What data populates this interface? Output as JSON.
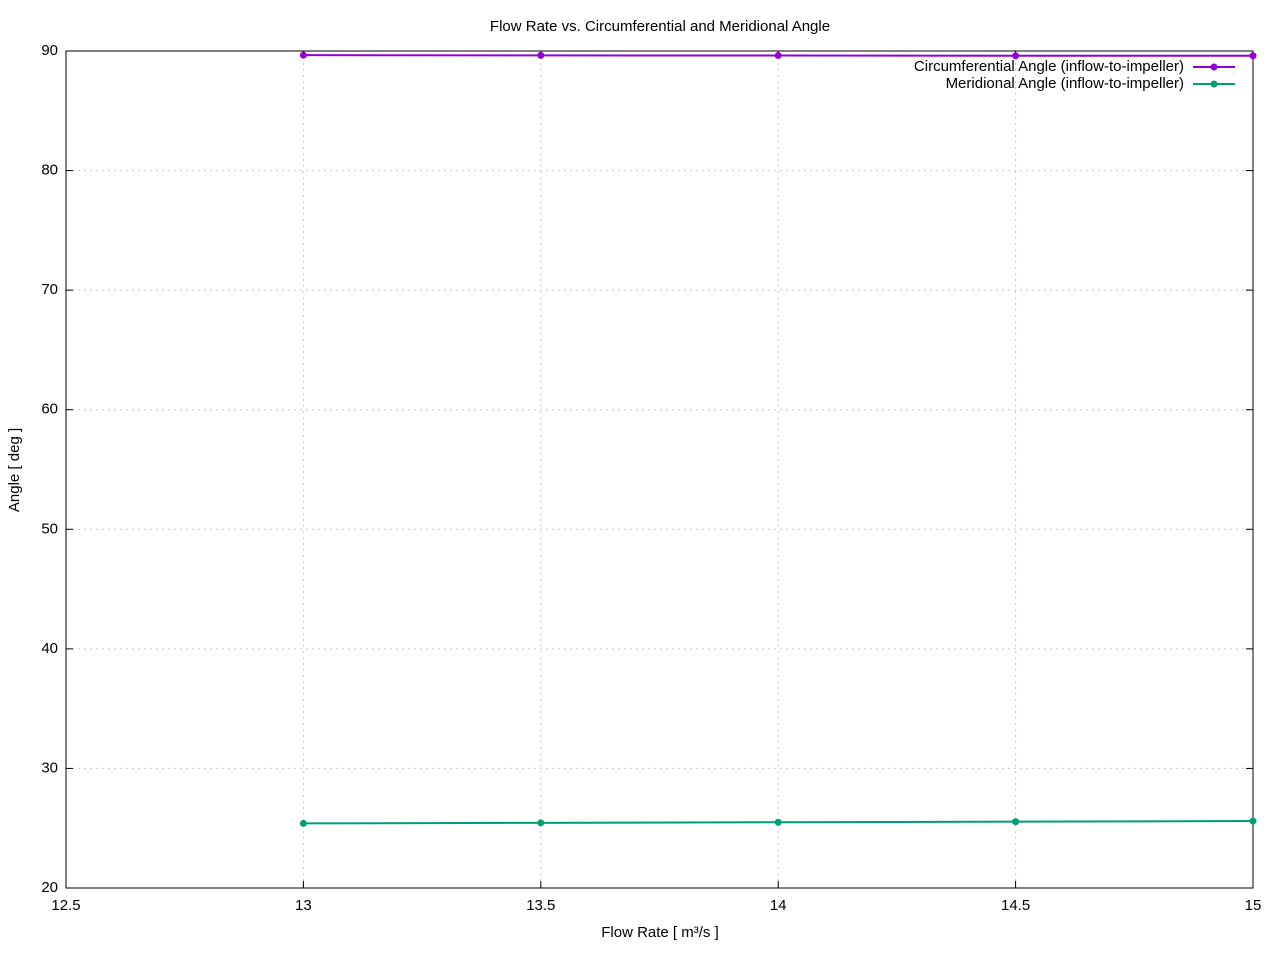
{
  "chart_data": {
    "type": "line",
    "title": "Flow Rate vs. Circumferential and Meridional Angle",
    "xlabel": "Flow Rate [ m³/s ]",
    "ylabel": "Angle [ deg ]",
    "x": [
      13,
      13.5,
      14,
      14.5,
      15
    ],
    "series": [
      {
        "name": "Circumferential Angle (inflow-to-impeller)",
        "color": "#9400d3",
        "values": [
          89.65,
          89.63,
          89.62,
          89.6,
          89.6
        ]
      },
      {
        "name": "Meridional Angle (inflow-to-impeller)",
        "color": "#009e73",
        "values": [
          25.4,
          25.45,
          25.5,
          25.55,
          25.6
        ]
      }
    ],
    "xlim": [
      12.5,
      15
    ],
    "xticks": [
      12.5,
      13,
      13.5,
      14,
      14.5,
      15
    ],
    "ylim": [
      20,
      90
    ],
    "yticks": [
      20,
      30,
      40,
      50,
      60,
      70,
      80,
      90
    ],
    "grid": true,
    "legend": "top-right"
  }
}
